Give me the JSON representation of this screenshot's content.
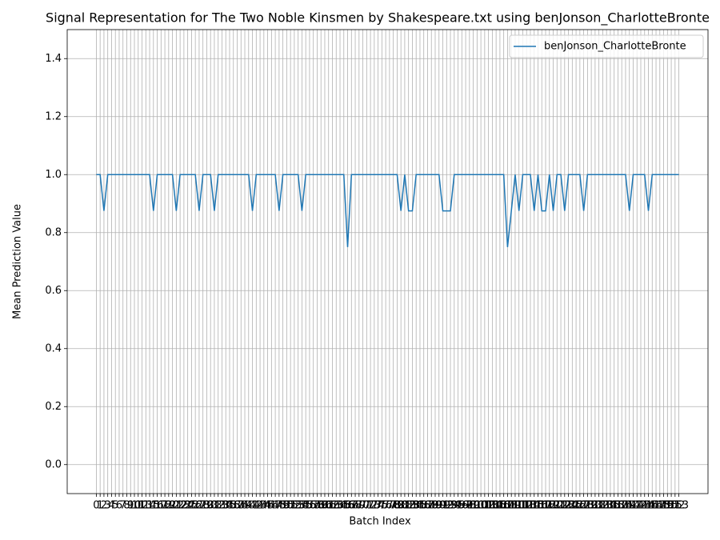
{
  "chart_data": {
    "type": "line",
    "title": "Signal Representation for The Two Noble Kinsmen by Shakespeare.txt using benJonson_CharlotteBronte",
    "xlabel": "Batch Index",
    "ylabel": "Mean Prediction Value",
    "x": [
      0,
      1,
      2,
      3,
      4,
      5,
      6,
      7,
      8,
      9,
      10,
      11,
      12,
      13,
      14,
      15,
      16,
      17,
      18,
      19,
      20,
      21,
      22,
      23,
      24,
      25,
      26,
      27,
      28,
      29,
      30,
      31,
      32,
      33,
      34,
      35,
      36,
      37,
      38,
      39,
      40,
      41,
      42,
      43,
      44,
      45,
      46,
      47,
      48,
      49,
      50,
      51,
      52,
      53,
      54,
      55,
      56,
      57,
      58,
      59,
      60,
      61,
      62,
      63,
      64,
      65,
      66,
      67,
      68,
      69,
      70,
      71,
      72,
      73,
      74,
      75,
      76,
      77,
      78,
      79,
      80,
      81,
      82,
      83,
      84,
      85,
      86,
      87,
      88,
      89,
      90,
      91,
      92,
      93,
      94,
      95,
      96,
      97,
      98,
      99,
      100,
      101,
      102,
      103,
      104,
      105,
      106,
      107,
      108,
      109,
      110,
      111,
      112,
      113,
      114,
      115,
      116,
      117,
      118,
      119,
      120,
      121,
      122,
      123,
      124,
      125,
      126,
      127,
      128,
      129,
      130,
      131,
      132,
      133,
      134,
      135,
      136,
      137,
      138,
      139,
      140,
      141,
      142,
      143,
      144,
      145,
      146,
      147,
      148,
      149,
      150,
      151,
      152,
      153
    ],
    "series": [
      {
        "name": "benJonson_CharlotteBronte",
        "color": "#1f77b4",
        "values": [
          1,
          1,
          0.875,
          1,
          1,
          1,
          1,
          1,
          1,
          1,
          1,
          1,
          1,
          1,
          1,
          0.875,
          1,
          1,
          1,
          1,
          1,
          0.875,
          1,
          1,
          1,
          1,
          1,
          0.875,
          1,
          1,
          1,
          0.875,
          1,
          1,
          1,
          1,
          1,
          1,
          1,
          1,
          1,
          0.875,
          1,
          1,
          1,
          1,
          1,
          1,
          0.875,
          1,
          1,
          1,
          1,
          1,
          0.875,
          1,
          1,
          1,
          1,
          1,
          1,
          1,
          1,
          1,
          1,
          1,
          0.75,
          1,
          1,
          1,
          1,
          1,
          1,
          1,
          1,
          1,
          1,
          1,
          1,
          1,
          0.875,
          1,
          0.875,
          0.875,
          1,
          1,
          1,
          1,
          1,
          1,
          1,
          0.875,
          0.875,
          0.875,
          1,
          1,
          1,
          1,
          1,
          1,
          1,
          1,
          1,
          1,
          1,
          1,
          1,
          1,
          0.75,
          0.875,
          1,
          0.875,
          1,
          1,
          1,
          0.875,
          1,
          0.875,
          0.875,
          1,
          0.875,
          1,
          1,
          0.875,
          1,
          1,
          1,
          1,
          0.875,
          1,
          1,
          1,
          1,
          1,
          1,
          1,
          1,
          1,
          1,
          1,
          0.875,
          1,
          1,
          1,
          1,
          0.875,
          1,
          1,
          1,
          1,
          1,
          1,
          1,
          1
        ]
      }
    ],
    "xlim": [
      -7.65,
      160.65
    ],
    "ylim": [
      -0.1,
      1.5
    ],
    "xticks": [
      0,
      1,
      2,
      3,
      4,
      5,
      6,
      7,
      8,
      9,
      10,
      11,
      12,
      13,
      14,
      15,
      16,
      17,
      18,
      19,
      20,
      21,
      22,
      23,
      24,
      25,
      26,
      27,
      28,
      29,
      30,
      31,
      32,
      33,
      34,
      35,
      36,
      37,
      38,
      39,
      40,
      41,
      42,
      43,
      44,
      45,
      46,
      47,
      48,
      49,
      50,
      51,
      52,
      53,
      54,
      55,
      56,
      57,
      58,
      59,
      60,
      61,
      62,
      63,
      64,
      65,
      66,
      67,
      68,
      69,
      70,
      71,
      72,
      73,
      74,
      75,
      76,
      77,
      78,
      79,
      80,
      81,
      82,
      83,
      84,
      85,
      86,
      87,
      88,
      89,
      90,
      91,
      92,
      93,
      94,
      95,
      96,
      97,
      98,
      99,
      100,
      101,
      102,
      103,
      104,
      105,
      106,
      107,
      108,
      109,
      110,
      111,
      112,
      113,
      114,
      115,
      116,
      117,
      118,
      119,
      120,
      121,
      122,
      123,
      124,
      125,
      126,
      127,
      128,
      129,
      130,
      131,
      132,
      133,
      134,
      135,
      136,
      137,
      138,
      139,
      140,
      141,
      142,
      143,
      144,
      145,
      146,
      147,
      148,
      149,
      150,
      151,
      152,
      153
    ],
    "yticks": [
      {
        "value": 0,
        "label": "0.0"
      },
      {
        "value": 0.2,
        "label": "0.2"
      },
      {
        "value": 0.4,
        "label": "0.4"
      },
      {
        "value": 0.6,
        "label": "0.6"
      },
      {
        "value": 0.8,
        "label": "0.8"
      },
      {
        "value": 1,
        "label": "1.0"
      },
      {
        "value": 1.2,
        "label": "1.2"
      },
      {
        "value": 1.4,
        "label": "1.4"
      }
    ],
    "grid": true,
    "legend": "upper right"
  }
}
